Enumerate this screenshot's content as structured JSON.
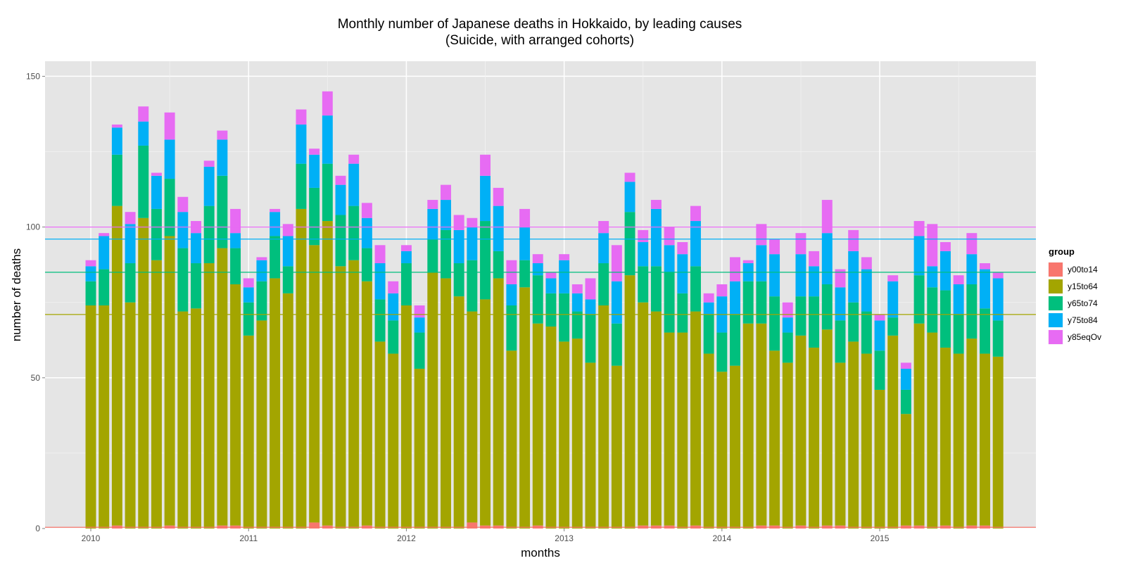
{
  "chart_data": {
    "type": "bar",
    "stacked": true,
    "title": "Monthly number of Japanese deaths in Hokkaido, by leading causes",
    "subtitle": "(Suicide, with arranged cohorts)",
    "xlabel": "months",
    "ylabel": "number of deaths",
    "x_ticks": [
      "2010",
      "2011",
      "2012",
      "2013",
      "2014",
      "2015"
    ],
    "y_ticks": [
      "0",
      "50",
      "100",
      "150"
    ],
    "ylim": [
      0,
      150
    ],
    "grid": true,
    "legend_position": "right",
    "legend_title": "group",
    "colors": {
      "y00to14": "#F8766D",
      "y15to64": "#A3A500",
      "y65to74": "#00BF7D",
      "y75to84": "#00B0F6",
      "y85eqOv": "#E76BF3"
    },
    "first_month": "2010-01",
    "series": [
      {
        "name": "y00to14",
        "values": [
          0,
          0,
          1,
          0,
          0,
          0,
          1,
          0,
          0,
          0,
          1,
          1,
          0,
          0,
          0,
          0,
          0,
          2,
          1,
          0,
          0,
          1,
          0,
          0,
          0,
          0,
          0,
          0,
          0,
          2,
          1,
          1,
          0,
          0,
          1,
          0,
          0,
          0,
          0,
          0,
          0,
          0,
          1,
          1,
          1,
          0,
          1,
          0,
          0,
          0,
          0,
          1,
          1,
          0,
          1,
          0,
          1,
          1,
          0,
          0,
          0,
          0,
          1,
          1,
          0,
          1,
          0,
          1,
          1,
          0
        ]
      },
      {
        "name": "y15to64",
        "values": [
          74,
          74,
          106,
          75,
          103,
          89,
          96,
          72,
          73,
          88,
          92,
          80,
          64,
          69,
          83,
          78,
          106,
          92,
          101,
          87,
          89,
          81,
          62,
          58,
          74,
          53,
          85,
          83,
          77,
          70,
          75,
          82,
          59,
          80,
          67,
          67,
          62,
          63,
          55,
          74,
          54,
          84,
          74,
          71,
          64,
          65,
          71,
          58,
          52,
          54,
          68,
          67,
          58,
          55,
          63,
          60,
          65,
          54,
          62,
          58,
          46,
          64,
          37,
          67,
          65,
          59,
          58,
          62,
          57,
          57
        ]
      },
      {
        "name": "y65to74",
        "values": [
          8,
          12,
          17,
          13,
          24,
          17,
          19,
          21,
          15,
          19,
          24,
          12,
          11,
          13,
          14,
          9,
          15,
          19,
          19,
          17,
          18,
          11,
          14,
          11,
          14,
          12,
          11,
          16,
          11,
          17,
          26,
          9,
          15,
          9,
          16,
          11,
          16,
          9,
          16,
          14,
          14,
          21,
          12,
          15,
          20,
          13,
          15,
          13,
          13,
          17,
          14,
          14,
          18,
          10,
          13,
          17,
          15,
          14,
          13,
          14,
          13,
          6,
          8,
          16,
          15,
          19,
          13,
          18,
          15,
          12
        ]
      },
      {
        "name": "y75to84",
        "values": [
          5,
          11,
          9,
          13,
          8,
          11,
          13,
          12,
          10,
          13,
          12,
          5,
          5,
          7,
          8,
          10,
          13,
          11,
          16,
          10,
          14,
          10,
          12,
          9,
          4,
          5,
          10,
          10,
          11,
          11,
          15,
          15,
          7,
          11,
          4,
          5,
          11,
          6,
          5,
          10,
          14,
          10,
          8,
          19,
          9,
          13,
          15,
          4,
          12,
          11,
          6,
          12,
          14,
          5,
          14,
          10,
          17,
          11,
          17,
          14,
          10,
          12,
          7,
          13,
          7,
          13,
          10,
          10,
          13,
          14
        ]
      },
      {
        "name": "y85eqOv",
        "values": [
          2,
          1,
          1,
          4,
          5,
          1,
          9,
          5,
          4,
          2,
          3,
          8,
          3,
          1,
          1,
          4,
          5,
          2,
          8,
          3,
          3,
          5,
          6,
          4,
          2,
          4,
          3,
          5,
          5,
          3,
          7,
          6,
          8,
          6,
          3,
          2,
          2,
          3,
          7,
          4,
          12,
          3,
          4,
          3,
          6,
          4,
          5,
          3,
          4,
          8,
          1,
          7,
          5,
          5,
          7,
          5,
          11,
          6,
          7,
          4,
          2,
          2,
          2,
          5,
          14,
          3,
          3,
          7,
          2,
          2
        ]
      }
    ],
    "hlines": [
      {
        "group": "y00to14",
        "value": 0.4
      },
      {
        "group": "y15to64",
        "value": 71
      },
      {
        "group": "y65to74",
        "value": 85
      },
      {
        "group": "y75to84",
        "value": 96
      },
      {
        "group": "y85eqOv",
        "value": 100
      }
    ]
  }
}
